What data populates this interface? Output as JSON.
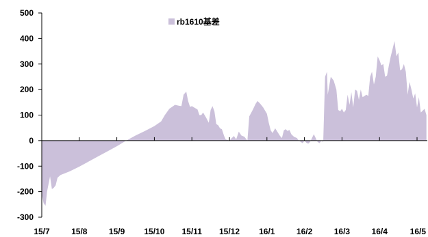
{
  "chart_data": {
    "type": "area",
    "title": "",
    "xlabel": "",
    "ylabel": "",
    "ylim": [
      -300,
      500
    ],
    "yticks": [
      -300,
      -200,
      -100,
      0,
      100,
      200,
      300,
      400,
      500
    ],
    "ytick_labels": [
      "-300",
      "-200",
      "-100",
      "0",
      "100",
      "200",
      "300",
      "400",
      "500"
    ],
    "categories": [
      "15/7",
      "15/8",
      "15/9",
      "15/10",
      "15/11",
      "15/12",
      "16/1",
      "16/2",
      "16/3",
      "16/4",
      "16/5"
    ],
    "grid": false,
    "legend_position": "top-center",
    "fill_color": "#CBC0DA",
    "axis_color": "#000000",
    "series": [
      {
        "name": "rb1610基差",
        "points": [
          [
            0.0,
            -210
          ],
          [
            0.05,
            -245
          ],
          [
            0.1,
            -255
          ],
          [
            0.14,
            -200
          ],
          [
            0.18,
            -170
          ],
          [
            0.22,
            -140
          ],
          [
            0.27,
            -190
          ],
          [
            0.32,
            -185
          ],
          [
            0.37,
            -175
          ],
          [
            0.42,
            -145
          ],
          [
            0.5,
            -135
          ],
          [
            0.75,
            -120
          ],
          [
            1.0,
            -102
          ],
          [
            1.25,
            -82
          ],
          [
            1.5,
            -62
          ],
          [
            1.75,
            -42
          ],
          [
            2.0,
            -22
          ],
          [
            2.25,
            0
          ],
          [
            2.5,
            20
          ],
          [
            2.75,
            38
          ],
          [
            3.0,
            57
          ],
          [
            3.18,
            75
          ],
          [
            3.28,
            100
          ],
          [
            3.4,
            125
          ],
          [
            3.55,
            140
          ],
          [
            3.65,
            137
          ],
          [
            3.72,
            135
          ],
          [
            3.78,
            180
          ],
          [
            3.85,
            192
          ],
          [
            3.9,
            155
          ],
          [
            3.95,
            132
          ],
          [
            4.0,
            135
          ],
          [
            4.08,
            128
          ],
          [
            4.15,
            122
          ],
          [
            4.2,
            100
          ],
          [
            4.25,
            100
          ],
          [
            4.3,
            110
          ],
          [
            4.38,
            90
          ],
          [
            4.45,
            70
          ],
          [
            4.5,
            120
          ],
          [
            4.55,
            135
          ],
          [
            4.6,
            115
          ],
          [
            4.65,
            65
          ],
          [
            4.7,
            60
          ],
          [
            4.75,
            48
          ],
          [
            4.8,
            45
          ],
          [
            4.86,
            18
          ],
          [
            4.9,
            5
          ],
          [
            5.0,
            0
          ],
          [
            5.05,
            8
          ],
          [
            5.12,
            18
          ],
          [
            5.18,
            5
          ],
          [
            5.25,
            35
          ],
          [
            5.32,
            20
          ],
          [
            5.4,
            15
          ],
          [
            5.48,
            0
          ],
          [
            5.53,
            95
          ],
          [
            5.62,
            120
          ],
          [
            5.7,
            145
          ],
          [
            5.75,
            155
          ],
          [
            5.82,
            145
          ],
          [
            5.9,
            130
          ],
          [
            6.0,
            105
          ],
          [
            6.05,
            70
          ],
          [
            6.1,
            40
          ],
          [
            6.15,
            30
          ],
          [
            6.22,
            48
          ],
          [
            6.3,
            30
          ],
          [
            6.35,
            18
          ],
          [
            6.4,
            10
          ],
          [
            6.45,
            40
          ],
          [
            6.5,
            45
          ],
          [
            6.55,
            38
          ],
          [
            6.6,
            42
          ],
          [
            6.65,
            25
          ],
          [
            6.72,
            15
          ],
          [
            6.8,
            10
          ],
          [
            6.85,
            0
          ],
          [
            6.9,
            -5
          ],
          [
            6.95,
            -10
          ],
          [
            7.0,
            0
          ],
          [
            7.05,
            -8
          ],
          [
            7.1,
            -12
          ],
          [
            7.15,
            -5
          ],
          [
            7.25,
            25
          ],
          [
            7.3,
            10
          ],
          [
            7.35,
            -5
          ],
          [
            7.4,
            -10
          ],
          [
            7.45,
            0
          ],
          [
            7.5,
            -5
          ],
          [
            7.55,
            250
          ],
          [
            7.6,
            270
          ],
          [
            7.62,
            180
          ],
          [
            7.7,
            250
          ],
          [
            7.78,
            235
          ],
          [
            7.85,
            200
          ],
          [
            7.9,
            120
          ],
          [
            7.95,
            115
          ],
          [
            8.0,
            125
          ],
          [
            8.05,
            110
          ],
          [
            8.1,
            120
          ],
          [
            8.15,
            180
          ],
          [
            8.2,
            140
          ],
          [
            8.25,
            190
          ],
          [
            8.3,
            130
          ],
          [
            8.35,
            200
          ],
          [
            8.4,
            195
          ],
          [
            8.45,
            160
          ],
          [
            8.5,
            200
          ],
          [
            8.55,
            170
          ],
          [
            8.6,
            175
          ],
          [
            8.65,
            180
          ],
          [
            8.7,
            175
          ],
          [
            8.75,
            250
          ],
          [
            8.8,
            270
          ],
          [
            8.85,
            220
          ],
          [
            8.9,
            250
          ],
          [
            8.95,
            330
          ],
          [
            9.0,
            315
          ],
          [
            9.05,
            295
          ],
          [
            9.1,
            300
          ],
          [
            9.15,
            250
          ],
          [
            9.2,
            255
          ],
          [
            9.25,
            295
          ],
          [
            9.3,
            330
          ],
          [
            9.35,
            360
          ],
          [
            9.4,
            390
          ],
          [
            9.45,
            330
          ],
          [
            9.5,
            345
          ],
          [
            9.55,
            275
          ],
          [
            9.6,
            280
          ],
          [
            9.65,
            300
          ],
          [
            9.7,
            270
          ],
          [
            9.75,
            180
          ],
          [
            9.8,
            230
          ],
          [
            9.85,
            200
          ],
          [
            9.9,
            165
          ],
          [
            9.95,
            185
          ],
          [
            10.0,
            130
          ],
          [
            10.05,
            170
          ],
          [
            10.1,
            110
          ],
          [
            10.2,
            125
          ],
          [
            10.25,
            100
          ]
        ]
      }
    ]
  }
}
